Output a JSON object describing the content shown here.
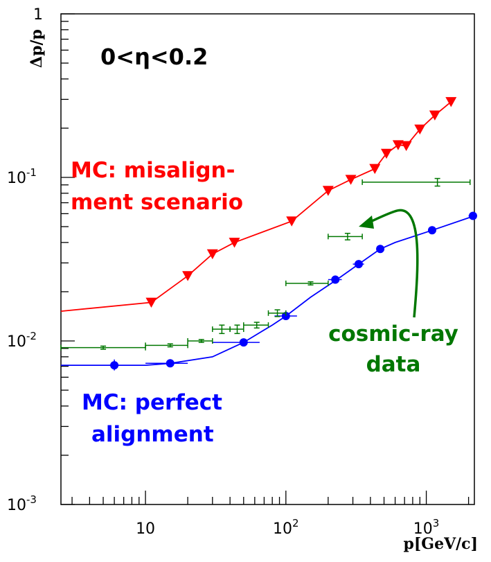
{
  "chart_data": {
    "type": "line",
    "xlabel": "p[GeV/c]",
    "ylabel": "Δp/p",
    "x_scale": "log",
    "y_scale": "log",
    "xlim": [
      2.5,
      2200
    ],
    "ylim": [
      0.001,
      1
    ],
    "x_ticks": [
      {
        "value": 10,
        "base": "10",
        "exp": ""
      },
      {
        "value": 100,
        "base": "10",
        "exp": "2"
      },
      {
        "value": 1000,
        "base": "10",
        "exp": "3"
      }
    ],
    "y_ticks": [
      {
        "value": 0.001,
        "base": "10",
        "exp": "-3"
      },
      {
        "value": 0.01,
        "base": "10",
        "exp": "-2"
      },
      {
        "value": 0.1,
        "base": "10",
        "exp": "-1"
      },
      {
        "value": 1,
        "base": "1",
        "exp": ""
      }
    ],
    "grid": false,
    "series": [
      {
        "name": "MC: misalignment scenario",
        "color": "#ff0000",
        "marker": "triangle-down",
        "line": [
          [
            2.5,
            0.0152
          ],
          [
            11,
            0.0172
          ],
          [
            20,
            0.025
          ],
          [
            30,
            0.034
          ],
          [
            43,
            0.04
          ],
          [
            110,
            0.054
          ],
          [
            200,
            0.083
          ],
          [
            290,
            0.097
          ],
          [
            430,
            0.113
          ],
          [
            520,
            0.14
          ],
          [
            630,
            0.158
          ],
          [
            720,
            0.156
          ],
          [
            900,
            0.197
          ],
          [
            1150,
            0.24
          ],
          [
            1500,
            0.29
          ]
        ],
        "points": [
          [
            11,
            0.0172
          ],
          [
            20,
            0.025
          ],
          [
            30,
            0.034
          ],
          [
            43,
            0.04
          ],
          [
            110,
            0.054
          ],
          [
            200,
            0.083
          ],
          [
            290,
            0.097
          ],
          [
            430,
            0.113
          ],
          [
            520,
            0.14
          ],
          [
            630,
            0.158
          ],
          [
            720,
            0.156
          ],
          [
            900,
            0.197
          ],
          [
            1150,
            0.24
          ],
          [
            1500,
            0.29
          ]
        ]
      },
      {
        "name": "MC: perfect alignment",
        "color": "#0000ff",
        "marker": "circle",
        "line": [
          [
            2.5,
            0.0071
          ],
          [
            10,
            0.0071
          ],
          [
            15,
            0.0073
          ],
          [
            30,
            0.008
          ],
          [
            50,
            0.0098
          ],
          [
            80,
            0.0125
          ],
          [
            100,
            0.0142
          ],
          [
            150,
            0.0185
          ],
          [
            230,
            0.0237
          ],
          [
            330,
            0.0295
          ],
          [
            470,
            0.0365
          ],
          [
            600,
            0.04
          ],
          [
            1100,
            0.0475
          ],
          [
            2200,
            0.0582
          ]
        ],
        "points": [
          {
            "x": 6,
            "y": 0.0071,
            "xerr": [
              5.5,
              6.5
            ],
            "yerr": [
              0.0066,
              0.0077
            ]
          },
          {
            "x": 15,
            "y": 0.0073,
            "xerr": [
              10,
              20
            ],
            "yerr": [
              0.0071,
              0.0075
            ]
          },
          {
            "x": 50,
            "y": 0.0098,
            "xerr": [
              30,
              65
            ],
            "yerr": [
              0.0096,
              0.01
            ]
          },
          {
            "x": 100,
            "y": 0.0142,
            "xerr": [
              83,
              120
            ],
            "yerr": [
              0.0138,
              0.0146
            ]
          },
          {
            "x": 225,
            "y": 0.0237,
            "xerr": [
              200,
              250
            ],
            "yerr": [
              0.0233,
              0.0241
            ]
          },
          {
            "x": 330,
            "y": 0.0295,
            "xerr": [
              300,
              360
            ],
            "yerr": [
              0.0291,
              0.0299
            ]
          },
          {
            "x": 470,
            "y": 0.0365,
            "xerr": [
              450,
              490
            ],
            "yerr": [
              0.0361,
              0.0369
            ]
          },
          {
            "x": 1100,
            "y": 0.0475,
            "xerr": [
              1050,
              1150
            ],
            "yerr": [
              0.0471,
              0.0479
            ]
          },
          {
            "x": 2150,
            "y": 0.0582,
            "xerr": [
              2000,
              2200
            ],
            "yerr": [
              0.0582,
              0.0582
            ]
          }
        ]
      },
      {
        "name": "cosmic-ray data",
        "color": "#007700",
        "marker": "errorbar",
        "points": [
          {
            "x": 5,
            "y": 0.0091,
            "xerr": [
              2.5,
              10
            ],
            "yerr": [
              0.0089,
              0.0093
            ]
          },
          {
            "x": 15,
            "y": 0.0094,
            "xerr": [
              10,
              20
            ],
            "yerr": [
              0.0092,
              0.0096
            ]
          },
          {
            "x": 25,
            "y": 0.01,
            "xerr": [
              20,
              30
            ],
            "yerr": [
              0.0098,
              0.0102
            ]
          },
          {
            "x": 35,
            "y": 0.0118,
            "xerr": [
              30,
              40
            ],
            "yerr": [
              0.0111,
              0.0125
            ]
          },
          {
            "x": 45,
            "y": 0.0118,
            "xerr": [
              40,
              50
            ],
            "yerr": [
              0.0111,
              0.0125
            ]
          },
          {
            "x": 62,
            "y": 0.0125,
            "xerr": [
              50,
              75
            ],
            "yerr": [
              0.012,
              0.013
            ]
          },
          {
            "x": 87,
            "y": 0.0148,
            "xerr": [
              75,
              100
            ],
            "yerr": [
              0.0141,
              0.0155
            ]
          },
          {
            "x": 150,
            "y": 0.0225,
            "xerr": [
              100,
              200
            ],
            "yerr": [
              0.022,
              0.023
            ]
          },
          {
            "x": 275,
            "y": 0.0435,
            "xerr": [
              200,
              350
            ],
            "yerr": [
              0.0415,
              0.0455
            ]
          },
          {
            "x": 1200,
            "y": 0.0935,
            "xerr": [
              350,
              2050
            ],
            "yerr": [
              0.0885,
              0.0985
            ]
          }
        ]
      }
    ],
    "annotations": [
      {
        "text": "0<η<0.2",
        "color": "#000000"
      },
      {
        "lines": [
          "MC: misalign-",
          "ment scenario"
        ],
        "color": "#ff0000"
      },
      {
        "lines": [
          "MC: perfect",
          "alignment"
        ],
        "color": "#0000ff"
      },
      {
        "lines": [
          "cosmic-ray",
          "data"
        ],
        "color": "#007700"
      }
    ]
  }
}
